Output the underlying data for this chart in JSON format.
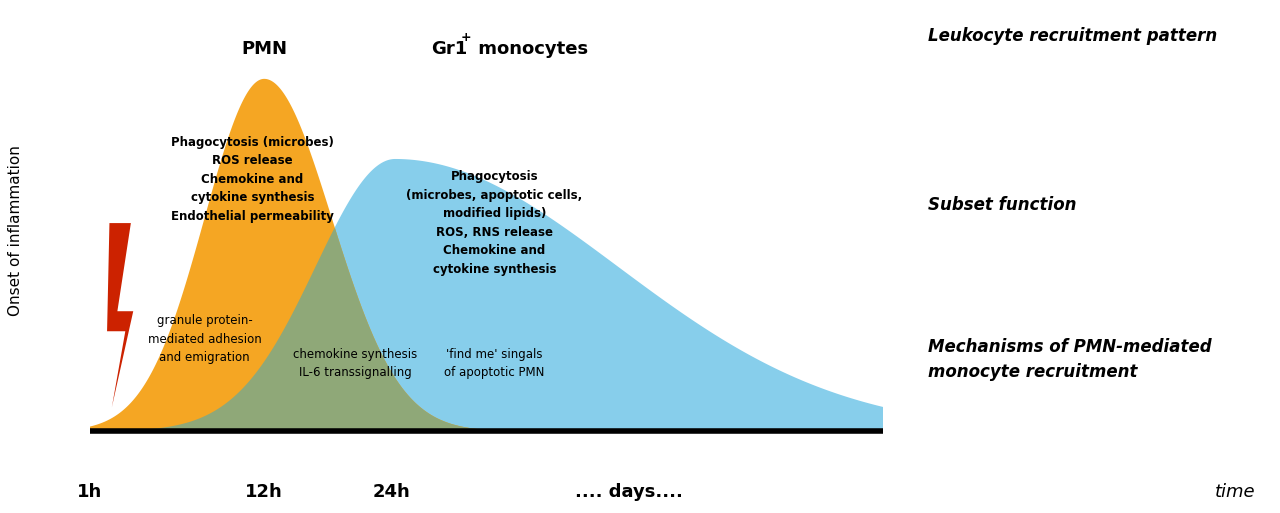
{
  "bg_color": "#ffffff",
  "pmn_color": "#F5A623",
  "monocyte_color": "#87CEEB",
  "overlap_color": "#8FA878",
  "lightning_color": "#CC2200",
  "axis_color": "#000000",
  "text_color": "#000000",
  "title_row1": "Leukocyte recruitment pattern",
  "title_row2": "Subset function",
  "title_row3_line1": "Mechanisms of PMN-mediated",
  "title_row3_line2": "monocyte recruitment",
  "pmn_label": "PMN",
  "mono_label_base": "Gr1",
  "mono_label_sup": "+",
  "mono_label_rest": " monocytes",
  "ylabel": "Onset of inflammation",
  "xlabel_time": "time",
  "tick_1h": "1h",
  "tick_12h": "12h",
  "tick_24h": "24h",
  "tick_days": ".... days....",
  "pmn_func_text": "Phagocytosis (microbes)\nROS release\nChemokine and\ncytokine synthesis\nEndothelial permeability",
  "pmn_mech_text": "granule protein-\nmediated adhesion\nand emigration",
  "mono_func_text": "Phagocytosis\n(microbes, apoptotic cells,\nmodified lipids)\nROS, RNS release\nChemokine and\ncytokine synthesis",
  "mono_mech_text": "chemokine synthesis\nIL-6 transsignalling",
  "find_me_text": "'find me' singals\nof apoptotic PMN",
  "figsize": [
    12.8,
    5.13
  ],
  "dpi": 100
}
